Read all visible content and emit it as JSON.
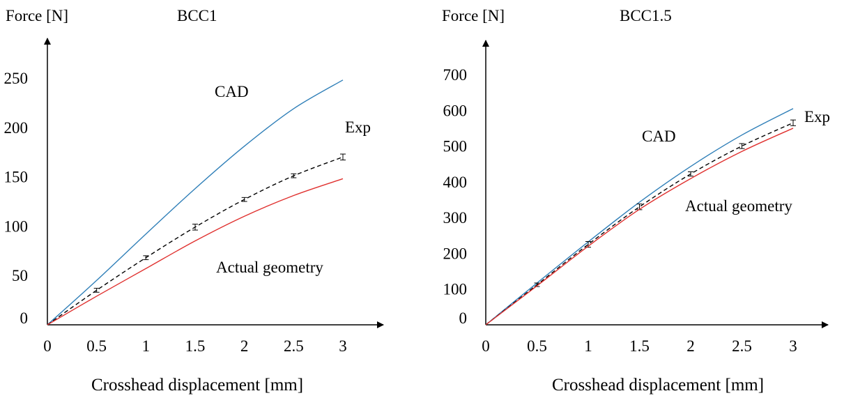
{
  "chart_data": [
    {
      "type": "line",
      "title": "BCC1",
      "ylabel": "Force [N]",
      "xlabel": "Crosshead displacement [mm]",
      "xlim": [
        0,
        3
      ],
      "ylim": [
        0,
        250
      ],
      "x_ticks": [
        "0",
        "0.5",
        "1",
        "1.5",
        "2",
        "2.5",
        "3"
      ],
      "y_ticks": [
        "0",
        "50",
        "100",
        "150",
        "200",
        "250"
      ],
      "series": [
        {
          "name": "CAD",
          "style": "solid",
          "color": "#2f7fb8",
          "x": [
            0,
            0.5,
            1,
            1.5,
            2,
            2.5,
            3
          ],
          "y": [
            0,
            45,
            92,
            138,
            181,
            219,
            248
          ]
        },
        {
          "name": "Exp",
          "style": "dashed",
          "color": "#000000",
          "x": [
            0,
            0.5,
            1,
            1.5,
            2,
            2.5,
            3
          ],
          "y": [
            0,
            35,
            68,
            99,
            127,
            151,
            170
          ],
          "error": [
            0,
            2,
            2,
            3,
            2,
            2,
            3
          ]
        },
        {
          "name": "Actual geometry",
          "style": "solid",
          "color": "#e0312f",
          "x": [
            0,
            0.5,
            1,
            1.5,
            2,
            2.5,
            3
          ],
          "y": [
            0,
            29,
            57,
            85,
            110,
            131,
            148
          ]
        }
      ]
    },
    {
      "type": "line",
      "title": "BCC1.5",
      "ylabel": "Force [N]",
      "xlabel": "Crosshead displacement [mm]",
      "xlim": [
        0,
        3
      ],
      "ylim": [
        0,
        700
      ],
      "x_ticks": [
        "0",
        "0.5",
        "1",
        "1.5",
        "2",
        "2.5",
        "3"
      ],
      "y_ticks": [
        "0",
        "100",
        "200",
        "300",
        "400",
        "500",
        "600",
        "700"
      ],
      "series": [
        {
          "name": "CAD",
          "style": "solid",
          "color": "#2f7fb8",
          "x": [
            0,
            0.5,
            1,
            1.5,
            2,
            2.5,
            3
          ],
          "y": [
            0,
            117,
            232,
            343,
            443,
            531,
            605
          ]
        },
        {
          "name": "Exp",
          "style": "dashed",
          "color": "#000000",
          "x": [
            0,
            0.5,
            1,
            1.5,
            2,
            2.5,
            3
          ],
          "y": [
            0,
            112,
            225,
            330,
            422,
            500,
            565
          ],
          "error": [
            0,
            5,
            8,
            8,
            6,
            7,
            8
          ]
        },
        {
          "name": "Actual geometry",
          "style": "solid",
          "color": "#e0312f",
          "x": [
            0,
            0.5,
            1,
            1.5,
            2,
            2.5,
            3
          ],
          "y": [
            0,
            109,
            220,
            323,
            409,
            485,
            550
          ]
        }
      ]
    }
  ]
}
